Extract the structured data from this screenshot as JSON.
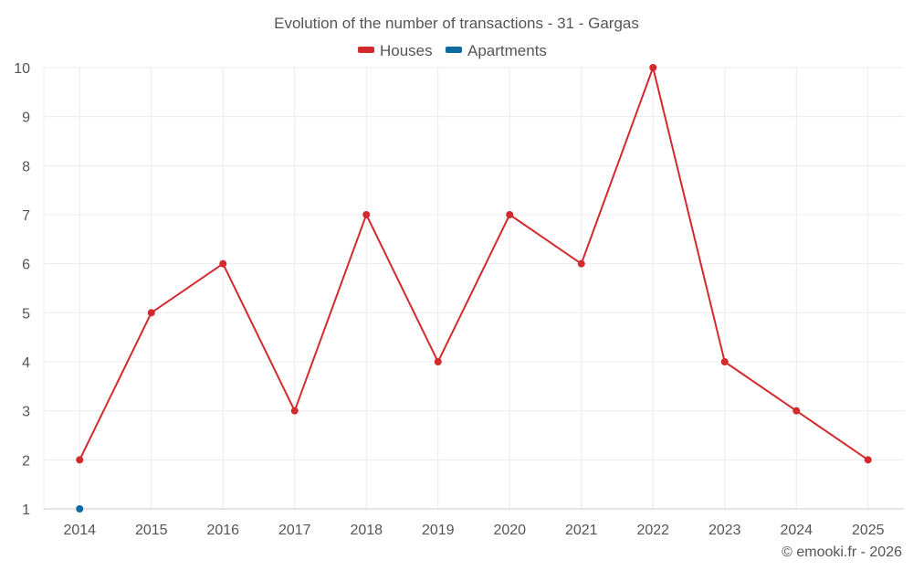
{
  "chart_data": {
    "type": "line",
    "title": "Evolution of the number of transactions - 31 - Gargas",
    "categories": [
      "2014",
      "2015",
      "2016",
      "2017",
      "2018",
      "2019",
      "2020",
      "2021",
      "2022",
      "2023",
      "2024",
      "2025"
    ],
    "series": [
      {
        "name": "Houses",
        "color": "#d32a2e",
        "values": [
          2,
          5,
          6,
          3,
          7,
          4,
          7,
          6,
          10,
          4,
          3,
          2
        ]
      },
      {
        "name": "Apartments",
        "color": "#0f6aa0",
        "values": [
          1,
          null,
          null,
          null,
          null,
          null,
          null,
          null,
          null,
          null,
          null,
          null
        ]
      }
    ],
    "ylim": [
      1,
      10
    ],
    "yticks": [
      1,
      2,
      3,
      4,
      5,
      6,
      7,
      8,
      9,
      10
    ],
    "xlabel": "",
    "ylabel": "",
    "grid": true,
    "legend_position": "top-center"
  },
  "credit": "© emooki.fr - 2026"
}
